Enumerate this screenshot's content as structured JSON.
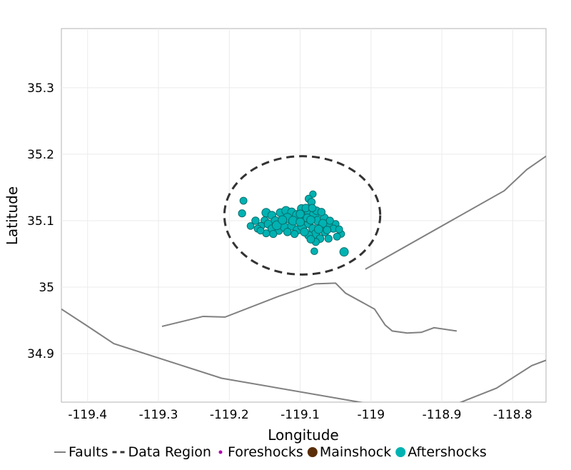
{
  "chart_data": {
    "type": "scatter",
    "xlabel": "Longitude",
    "ylabel": "Latitude",
    "xlim": [
      -119.437,
      -118.753
    ],
    "ylim": [
      34.827,
      35.389
    ],
    "xticks": [
      "-119.4",
      "-119.3",
      "-119.2",
      "-119.1",
      "-119",
      "-118.9",
      "-118.8"
    ],
    "yticks": [
      "35.3",
      "35.2",
      "35.1",
      "35",
      "34.9"
    ],
    "grid": true,
    "legend_position": "bottom",
    "legend": [
      {
        "label": "Faults",
        "kind": "line",
        "color": "#808080"
      },
      {
        "label": "Data Region",
        "kind": "dashed",
        "color": "#333333"
      },
      {
        "label": "Foreshocks",
        "kind": "point",
        "color": "#b000b0"
      },
      {
        "label": "Mainshock",
        "kind": "point",
        "color": "#5a2e06"
      },
      {
        "label": "Aftershocks",
        "kind": "point",
        "color": "#00b2b2"
      }
    ],
    "data_region": {
      "center": [
        -119.097,
        35.108
      ],
      "radius_lon": 0.11,
      "radius_lat": 0.089
    },
    "faults": [
      [
        [
          -119.008,
          35.027
        ],
        [
          -118.812,
          35.145
        ],
        [
          -118.78,
          35.177
        ],
        [
          -118.753,
          35.197
        ]
      ],
      [
        [
          -119.295,
          34.941
        ],
        [
          -119.237,
          34.956
        ],
        [
          -119.206,
          34.955
        ],
        [
          -119.131,
          34.986
        ],
        [
          -119.079,
          35.005
        ],
        [
          -119.05,
          35.006
        ],
        [
          -119.036,
          34.991
        ],
        [
          -118.995,
          34.967
        ],
        [
          -118.98,
          34.943
        ],
        [
          -118.97,
          34.934
        ],
        [
          -118.949,
          34.931
        ],
        [
          -118.929,
          34.932
        ],
        [
          -118.911,
          34.939
        ],
        [
          -118.879,
          34.934
        ]
      ],
      [
        [
          -119.437,
          34.967
        ],
        [
          -119.401,
          34.942
        ],
        [
          -119.363,
          34.915
        ],
        [
          -119.211,
          34.863
        ],
        [
          -119.0,
          34.824
        ]
      ],
      [
        [
          -118.88,
          34.824
        ],
        [
          -118.823,
          34.848
        ],
        [
          -118.773,
          34.882
        ],
        [
          -118.753,
          34.89
        ]
      ]
    ],
    "mainshock": {
      "lon": -119.094,
      "lat": 35.109
    },
    "foreshocks": [],
    "aftershocks": [
      [
        -119.18,
        35.13,
        2.5
      ],
      [
        -119.182,
        35.111,
        2.6
      ],
      [
        -119.082,
        35.14,
        2.3
      ],
      [
        -119.038,
        35.053,
        3.2
      ],
      [
        -119.08,
        35.054,
        2.4
      ],
      [
        -119.042,
        35.08,
        2.4
      ],
      [
        -119.05,
        35.095,
        2.5
      ],
      [
        -119.06,
        35.073,
        2.6
      ],
      [
        -119.088,
        35.133,
        2.5
      ],
      [
        -119.084,
        35.128,
        2.7
      ],
      [
        -119.148,
        35.112,
        3.2
      ],
      [
        -119.14,
        35.108,
        3.0
      ],
      [
        -119.15,
        35.1,
        2.8
      ],
      [
        -119.155,
        35.092,
        2.6
      ],
      [
        -119.16,
        35.088,
        2.5
      ],
      [
        -119.145,
        35.095,
        3.0
      ],
      [
        -119.135,
        35.1,
        3.0
      ],
      [
        -119.128,
        35.112,
        3.0
      ],
      [
        -119.12,
        35.115,
        3.2
      ],
      [
        -119.112,
        35.113,
        3.0
      ],
      [
        -119.118,
        35.104,
        3.6
      ],
      [
        -119.104,
        35.108,
        3.8
      ],
      [
        -119.098,
        35.118,
        3.1
      ],
      [
        -119.095,
        35.102,
        3.4
      ],
      [
        -119.088,
        35.112,
        3.0
      ],
      [
        -119.08,
        35.109,
        3.8
      ],
      [
        -119.075,
        35.1,
        3.3
      ],
      [
        -119.07,
        35.09,
        3.2
      ],
      [
        -119.066,
        35.104,
        3.0
      ],
      [
        -119.06,
        35.094,
        2.8
      ],
      [
        -119.14,
        35.088,
        2.8
      ],
      [
        -119.13,
        35.085,
        2.7
      ],
      [
        -119.122,
        35.09,
        3.2
      ],
      [
        -119.112,
        35.092,
        3.0
      ],
      [
        -119.104,
        35.086,
        3.1
      ],
      [
        -119.097,
        35.092,
        3.6
      ],
      [
        -119.088,
        35.096,
        3.2
      ],
      [
        -119.082,
        35.088,
        3.0
      ],
      [
        -119.078,
        35.08,
        3.2
      ],
      [
        -119.088,
        35.078,
        3.0
      ],
      [
        -119.094,
        35.083,
        3.0
      ],
      [
        -119.072,
        35.073,
        2.8
      ],
      [
        -119.078,
        35.068,
        2.6
      ],
      [
        -119.085,
        35.072,
        2.8
      ],
      [
        -119.065,
        35.083,
        2.9
      ],
      [
        -119.148,
        35.081,
        2.5
      ],
      [
        -119.156,
        35.085,
        2.4
      ],
      [
        -119.17,
        35.092,
        2.4
      ],
      [
        -119.163,
        35.1,
        2.7
      ],
      [
        -119.133,
        35.093,
        3.4
      ],
      [
        -119.11,
        35.1,
        3.3
      ],
      [
        -119.1,
        35.098,
        3.1
      ],
      [
        -119.125,
        35.101,
        3.2
      ],
      [
        -119.09,
        35.104,
        3.0
      ],
      [
        -119.077,
        35.115,
        2.8
      ],
      [
        -119.07,
        35.113,
        2.7
      ],
      [
        -119.058,
        35.1,
        2.6
      ],
      [
        -119.053,
        35.088,
        2.6
      ],
      [
        -119.045,
        35.087,
        2.5
      ],
      [
        -119.048,
        35.076,
        2.5
      ],
      [
        -119.138,
        35.08,
        2.6
      ],
      [
        -119.118,
        35.083,
        2.7
      ],
      [
        -119.108,
        35.08,
        2.6
      ],
      [
        -119.1,
        35.11,
        3.0
      ],
      [
        -119.092,
        35.119,
        2.8
      ],
      [
        -119.083,
        35.119,
        2.7
      ],
      [
        -119.085,
        35.101,
        3.1
      ],
      [
        -119.068,
        35.096,
        3.0
      ],
      [
        -119.074,
        35.087,
        3.1
      ],
      [
        -119.062,
        35.086,
        2.8
      ]
    ]
  }
}
